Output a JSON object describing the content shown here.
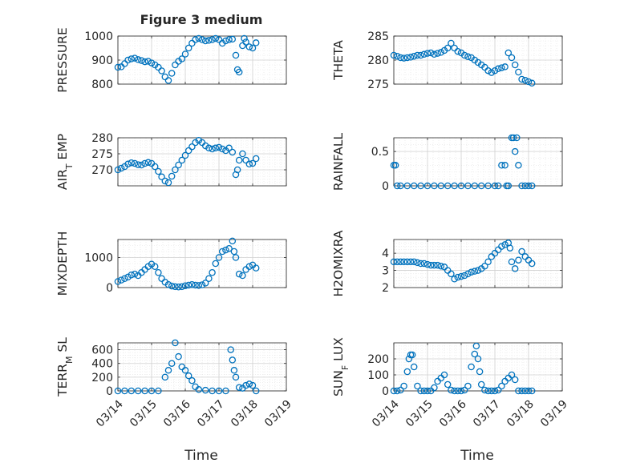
{
  "figure": {
    "title": "Figure 3 medium",
    "xlabel": "Time",
    "x_tick_labels": [
      "03/14",
      "03/15",
      "03/16",
      "03/17",
      "03/18",
      "03/19"
    ]
  },
  "colors": {
    "marker": "#0072BD",
    "grid": "#d0d0d0",
    "axis": "#262626",
    "background": "#ffffff"
  },
  "chart_data": [
    {
      "type": "scatter",
      "ylabel": "PRESSURE",
      "ylim": [
        800,
        1000
      ],
      "yticks": [
        800,
        900,
        1000
      ],
      "xlim": [
        0,
        5
      ],
      "grid": true,
      "marker": "open-circle",
      "x": [
        0.0,
        0.1,
        0.2,
        0.3,
        0.4,
        0.5,
        0.6,
        0.7,
        0.8,
        0.9,
        1.0,
        1.1,
        1.2,
        1.3,
        1.4,
        1.5,
        1.6,
        1.7,
        1.8,
        1.9,
        2.0,
        2.1,
        2.2,
        2.3,
        2.4,
        2.5,
        2.6,
        2.7,
        2.8,
        2.9,
        3.0,
        3.1,
        3.2,
        3.3,
        3.4,
        3.5,
        3.55,
        3.6,
        3.7,
        3.75,
        3.8,
        3.9,
        4.0,
        4.1
      ],
      "y": [
        870,
        872,
        885,
        900,
        905,
        908,
        902,
        898,
        893,
        895,
        888,
        880,
        870,
        855,
        830,
        815,
        845,
        880,
        895,
        905,
        925,
        950,
        970,
        985,
        990,
        985,
        980,
        982,
        985,
        990,
        985,
        970,
        980,
        985,
        987,
        920,
        860,
        850,
        960,
        990,
        975,
        955,
        950,
        972
      ]
    },
    {
      "type": "scatter",
      "ylabel": "THETA",
      "ylim": [
        275,
        285
      ],
      "yticks": [
        275,
        280,
        285
      ],
      "xlim": [
        0,
        5
      ],
      "grid": true,
      "marker": "open-circle",
      "x": [
        0.0,
        0.1,
        0.2,
        0.3,
        0.4,
        0.5,
        0.6,
        0.7,
        0.8,
        0.9,
        1.0,
        1.1,
        1.2,
        1.3,
        1.4,
        1.5,
        1.6,
        1.7,
        1.8,
        1.9,
        2.0,
        2.1,
        2.2,
        2.3,
        2.4,
        2.5,
        2.6,
        2.7,
        2.8,
        2.9,
        3.0,
        3.1,
        3.2,
        3.3,
        3.4,
        3.5,
        3.6,
        3.7,
        3.8,
        3.9,
        4.0,
        4.1
      ],
      "y": [
        281,
        280.8,
        280.5,
        280.4,
        280.5,
        280.6,
        280.8,
        281,
        281,
        281.2,
        281.4,
        281.5,
        281.2,
        281.4,
        281.6,
        282,
        282.5,
        283.5,
        282.5,
        281.8,
        281.5,
        281,
        280.7,
        280.5,
        280,
        279.5,
        279,
        278.5,
        277.8,
        277.4,
        277.8,
        278.2,
        278.4,
        278.6,
        281.5,
        280.5,
        279,
        277.5,
        276,
        275.8,
        275.5,
        275.2
      ]
    },
    {
      "type": "scatter",
      "ylabel": "AIR_T EMP",
      "ylim": [
        265,
        280
      ],
      "yticks": [
        270,
        275,
        280
      ],
      "xlim": [
        0,
        5
      ],
      "grid": true,
      "marker": "open-circle",
      "x": [
        0.0,
        0.1,
        0.2,
        0.3,
        0.4,
        0.5,
        0.6,
        0.7,
        0.8,
        0.9,
        1.0,
        1.1,
        1.2,
        1.3,
        1.4,
        1.5,
        1.6,
        1.7,
        1.8,
        1.9,
        2.0,
        2.1,
        2.2,
        2.3,
        2.4,
        2.5,
        2.6,
        2.7,
        2.8,
        2.9,
        3.0,
        3.1,
        3.2,
        3.3,
        3.4,
        3.5,
        3.55,
        3.6,
        3.7,
        3.8,
        3.9,
        4.0,
        4.1
      ],
      "y": [
        270,
        270.5,
        271,
        271.8,
        272.2,
        272,
        271.6,
        271.5,
        272,
        272.3,
        272,
        271,
        269.5,
        267.8,
        266.5,
        266,
        268,
        270,
        271.5,
        273,
        274.5,
        276,
        277.2,
        278.5,
        279.2,
        278.5,
        277.5,
        276.8,
        276.5,
        276.8,
        277,
        276.5,
        276,
        276.8,
        275.5,
        268.5,
        270,
        273,
        275,
        273,
        271.8,
        272,
        273.5
      ]
    },
    {
      "type": "scatter",
      "ylabel": "RAINFALL",
      "ylim": [
        0,
        0.7
      ],
      "yticks": [
        0,
        0.5
      ],
      "xlim": [
        0,
        5
      ],
      "grid": true,
      "marker": "open-circle",
      "x": [
        0.0,
        0.05,
        0.1,
        0.2,
        0.4,
        0.6,
        0.8,
        1.0,
        1.2,
        1.4,
        1.6,
        1.8,
        2.0,
        2.2,
        2.4,
        2.6,
        2.8,
        3.0,
        3.1,
        3.2,
        3.3,
        3.35,
        3.4,
        3.5,
        3.55,
        3.6,
        3.65,
        3.7,
        3.8,
        3.9,
        4.0,
        4.1
      ],
      "y": [
        0.3,
        0.3,
        0,
        0,
        0,
        0,
        0,
        0,
        0,
        0,
        0,
        0,
        0,
        0,
        0,
        0,
        0,
        0,
        0,
        0.3,
        0.3,
        0,
        0,
        0.7,
        0.7,
        0.5,
        0.7,
        0.3,
        0,
        0,
        0,
        0
      ]
    },
    {
      "type": "scatter",
      "ylabel": "MIXDEPTH",
      "ylim": [
        0,
        1600
      ],
      "yticks": [
        0,
        1000
      ],
      "xlim": [
        0,
        5
      ],
      "grid": true,
      "marker": "open-circle",
      "x": [
        0.0,
        0.1,
        0.2,
        0.3,
        0.4,
        0.5,
        0.6,
        0.7,
        0.8,
        0.9,
        1.0,
        1.1,
        1.2,
        1.3,
        1.4,
        1.5,
        1.6,
        1.7,
        1.8,
        1.9,
        2.0,
        2.1,
        2.2,
        2.3,
        2.4,
        2.5,
        2.6,
        2.7,
        2.8,
        2.9,
        3.0,
        3.1,
        3.2,
        3.3,
        3.4,
        3.45,
        3.5,
        3.6,
        3.7,
        3.8,
        3.9,
        4.0,
        4.1
      ],
      "y": [
        200,
        250,
        300,
        350,
        420,
        450,
        400,
        500,
        600,
        700,
        780,
        700,
        500,
        300,
        180,
        100,
        50,
        30,
        20,
        30,
        60,
        80,
        100,
        80,
        70,
        90,
        150,
        300,
        500,
        800,
        1000,
        1200,
        1250,
        1300,
        1550,
        1200,
        1000,
        450,
        400,
        600,
        700,
        750,
        650
      ]
    },
    {
      "type": "scatter",
      "ylabel": "H2OMIXRA",
      "ylim": [
        2,
        4.8
      ],
      "yticks": [
        2,
        3,
        4
      ],
      "xlim": [
        0,
        5
      ],
      "grid": true,
      "marker": "open-circle",
      "x": [
        0.0,
        0.1,
        0.2,
        0.3,
        0.4,
        0.5,
        0.6,
        0.7,
        0.8,
        0.9,
        1.0,
        1.1,
        1.2,
        1.3,
        1.4,
        1.5,
        1.6,
        1.7,
        1.8,
        1.9,
        2.0,
        2.1,
        2.2,
        2.3,
        2.4,
        2.5,
        2.6,
        2.7,
        2.8,
        2.9,
        3.0,
        3.1,
        3.2,
        3.3,
        3.4,
        3.45,
        3.5,
        3.6,
        3.7,
        3.8,
        3.9,
        4.0,
        4.1
      ],
      "y": [
        3.5,
        3.5,
        3.5,
        3.5,
        3.5,
        3.5,
        3.5,
        3.45,
        3.4,
        3.4,
        3.35,
        3.3,
        3.3,
        3.3,
        3.25,
        3.2,
        3.0,
        2.8,
        2.5,
        2.6,
        2.65,
        2.7,
        2.8,
        2.9,
        2.95,
        3.0,
        3.1,
        3.25,
        3.5,
        3.8,
        4.0,
        4.2,
        4.4,
        4.5,
        4.6,
        4.3,
        3.5,
        3.1,
        3.6,
        4.1,
        3.8,
        3.6,
        3.4
      ]
    },
    {
      "type": "scatter",
      "ylabel": "TERR_M SL",
      "ylim": [
        0,
        700
      ],
      "yticks": [
        0,
        200,
        400,
        600
      ],
      "xlim": [
        0,
        5
      ],
      "grid": true,
      "marker": "open-circle",
      "x": [
        0.0,
        0.2,
        0.4,
        0.6,
        0.8,
        1.0,
        1.2,
        1.4,
        1.5,
        1.6,
        1.7,
        1.8,
        1.9,
        2.0,
        2.1,
        2.2,
        2.3,
        2.4,
        2.6,
        2.8,
        3.0,
        3.2,
        3.35,
        3.4,
        3.45,
        3.5,
        3.6,
        3.7,
        3.8,
        3.9,
        4.0,
        4.1
      ],
      "y": [
        0,
        0,
        0,
        0,
        0,
        0,
        0,
        200,
        300,
        400,
        700,
        500,
        350,
        300,
        220,
        150,
        60,
        20,
        10,
        0,
        0,
        0,
        600,
        450,
        300,
        200,
        50,
        40,
        80,
        100,
        80,
        0
      ],
      "note": "y tick labels printed: 0, 200, 400, 600"
    },
    {
      "type": "scatter",
      "ylabel": "SUN_F LUX",
      "ylim": [
        0,
        300
      ],
      "yticks": [
        0,
        100,
        200
      ],
      "xlim": [
        0,
        5
      ],
      "grid": true,
      "marker": "open-circle",
      "x": [
        0.0,
        0.1,
        0.2,
        0.3,
        0.4,
        0.45,
        0.5,
        0.55,
        0.6,
        0.7,
        0.8,
        0.9,
        1.0,
        1.1,
        1.2,
        1.3,
        1.4,
        1.5,
        1.6,
        1.7,
        1.8,
        1.9,
        2.0,
        2.1,
        2.2,
        2.3,
        2.4,
        2.45,
        2.5,
        2.55,
        2.6,
        2.7,
        2.8,
        2.9,
        3.0,
        3.1,
        3.2,
        3.3,
        3.4,
        3.5,
        3.6,
        3.7,
        3.8,
        3.9,
        4.0,
        4.1
      ],
      "y": [
        0,
        0,
        5,
        30,
        120,
        200,
        225,
        225,
        150,
        30,
        0,
        0,
        0,
        0,
        20,
        60,
        80,
        100,
        40,
        5,
        0,
        0,
        0,
        5,
        30,
        150,
        230,
        280,
        200,
        120,
        40,
        5,
        0,
        0,
        0,
        5,
        30,
        60,
        80,
        100,
        70,
        0,
        0,
        0,
        0,
        0
      ]
    }
  ]
}
